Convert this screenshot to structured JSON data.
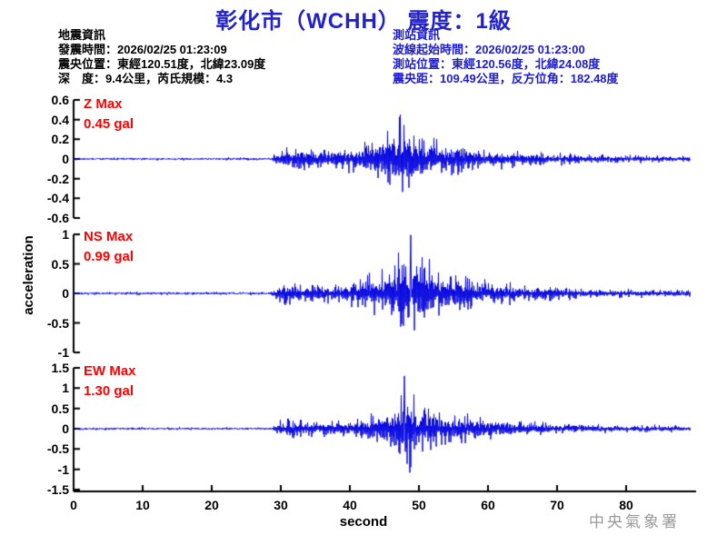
{
  "title": "彰化市（WCHH） 震度：1級",
  "earthquake_info": {
    "heading": "地震資訊",
    "lines": [
      "發震時間：2026/02/25 01:23:09",
      "震央位置：東經120.51度，北緯23.09度",
      "深　度：9.4公里，芮氏規模：4.3"
    ]
  },
  "station_info": {
    "heading": "測站資訊",
    "lines": [
      "波線起始時間：2026/02/25 01:23:00",
      "測站位置：東經120.56度，北緯24.08度",
      "震央距：109.49公里，反方位角：182.48度"
    ]
  },
  "watermark": "中央氣象署",
  "colors": {
    "title_blue": "#2222c8",
    "info_blue": "#1c1ccd",
    "trace_blue": "#0808e0",
    "max_label_red": "#ff0000",
    "axis_black": "#000000",
    "watermark_gray": "#9a9a9a"
  },
  "chart_data": {
    "type": "line",
    "title": "彰化市（WCHH） 震度：1級",
    "xlabel": "second",
    "ylabel": "acceleration",
    "x_range": [
      0,
      90
    ],
    "x_ticks": [
      "0",
      "10",
      "20",
      "30",
      "40",
      "50",
      "60",
      "70",
      "80"
    ],
    "grid": false,
    "legend": "none",
    "series": [
      {
        "name": "Z",
        "max_label_line1": "Z Max",
        "max_label_line2": "0.45 gal",
        "max_gal": 0.45,
        "ylim": [
          -0.6,
          0.6
        ],
        "y_ticks": [
          "0.6",
          "0.4",
          "0.2",
          "0",
          "-0.2",
          "-0.4",
          "-0.6"
        ],
        "p_onset_s": 29,
        "peak_time_s": 47.3,
        "envelope_gal": [
          [
            0,
            0.012
          ],
          [
            28.5,
            0.013
          ],
          [
            29.2,
            0.06
          ],
          [
            30,
            0.13
          ],
          [
            31,
            0.16
          ],
          [
            32,
            0.17
          ],
          [
            34,
            0.14
          ],
          [
            36,
            0.12
          ],
          [
            38,
            0.13
          ],
          [
            40,
            0.15
          ],
          [
            42,
            0.18
          ],
          [
            44,
            0.25
          ],
          [
            46,
            0.35
          ],
          [
            47.3,
            0.45
          ],
          [
            48.5,
            0.38
          ],
          [
            50,
            0.3
          ],
          [
            52,
            0.24
          ],
          [
            54,
            0.2
          ],
          [
            56,
            0.17
          ],
          [
            58,
            0.14
          ],
          [
            60,
            0.12
          ],
          [
            63,
            0.1
          ],
          [
            66,
            0.085
          ],
          [
            70,
            0.07
          ],
          [
            75,
            0.055
          ],
          [
            80,
            0.045
          ],
          [
            85,
            0.04
          ],
          [
            89.3,
            0.038
          ]
        ]
      },
      {
        "name": "NS",
        "max_label_line1": "NS Max",
        "max_label_line2": "0.99 gal",
        "max_gal": 0.99,
        "ylim": [
          -1,
          1
        ],
        "y_ticks": [
          "1",
          "0.5",
          "0",
          "-0.5",
          "-1"
        ],
        "p_onset_s": 29,
        "peak_time_s": 48.8,
        "envelope_gal": [
          [
            0,
            0.025
          ],
          [
            28.5,
            0.025
          ],
          [
            29.2,
            0.1
          ],
          [
            30,
            0.22
          ],
          [
            32,
            0.26
          ],
          [
            34,
            0.22
          ],
          [
            36,
            0.19
          ],
          [
            38,
            0.21
          ],
          [
            40,
            0.23
          ],
          [
            42,
            0.3
          ],
          [
            44,
            0.42
          ],
          [
            46,
            0.6
          ],
          [
            47.5,
            0.75
          ],
          [
            48.8,
            0.99
          ],
          [
            50,
            0.75
          ],
          [
            52,
            0.55
          ],
          [
            54,
            0.45
          ],
          [
            56,
            0.35
          ],
          [
            58,
            0.28
          ],
          [
            60,
            0.23
          ],
          [
            63,
            0.2
          ],
          [
            66,
            0.17
          ],
          [
            70,
            0.13
          ],
          [
            75,
            0.1
          ],
          [
            80,
            0.085
          ],
          [
            85,
            0.075
          ],
          [
            89.3,
            0.065
          ]
        ]
      },
      {
        "name": "EW",
        "max_label_line1": "EW Max",
        "max_label_line2": "1.30 gal",
        "max_gal": 1.3,
        "ylim": [
          -1.5,
          1.5
        ],
        "y_ticks": [
          "1.5",
          "1",
          "0.5",
          "0",
          "-0.5",
          "-1",
          "-1.5"
        ],
        "p_onset_s": 29,
        "peak_time_s": 47.9,
        "envelope_gal": [
          [
            0,
            0.03
          ],
          [
            28.5,
            0.03
          ],
          [
            29.2,
            0.12
          ],
          [
            30,
            0.25
          ],
          [
            32,
            0.28
          ],
          [
            34,
            0.22
          ],
          [
            36,
            0.2
          ],
          [
            38,
            0.22
          ],
          [
            40,
            0.3
          ],
          [
            42,
            0.35
          ],
          [
            44,
            0.5
          ],
          [
            46,
            0.8
          ],
          [
            47.9,
            1.3
          ],
          [
            49,
            1.0
          ],
          [
            50.5,
            0.8
          ],
          [
            52,
            0.6
          ],
          [
            54,
            0.5
          ],
          [
            56,
            0.42
          ],
          [
            58,
            0.38
          ],
          [
            60,
            0.34
          ],
          [
            63,
            0.26
          ],
          [
            66,
            0.2
          ],
          [
            70,
            0.16
          ],
          [
            75,
            0.12
          ],
          [
            80,
            0.1
          ],
          [
            85,
            0.09
          ],
          [
            89.3,
            0.08
          ]
        ]
      }
    ]
  }
}
